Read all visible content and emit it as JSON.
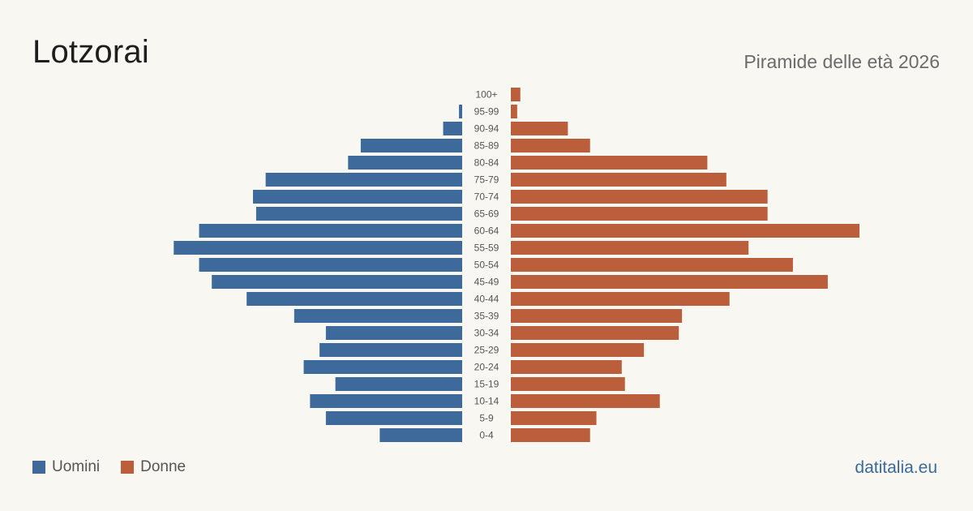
{
  "header": {
    "title": "Lotzorai",
    "subtitle": "Piramide delle età 2026"
  },
  "legend": {
    "men_label": "Uomini",
    "women_label": "Donne"
  },
  "footer": {
    "brand": "datitalia.eu"
  },
  "colors": {
    "men": "#3d6a9b",
    "women": "#bb5e3b",
    "age_label": "#555555"
  },
  "chart_data": {
    "type": "bar",
    "orientation": "horizontal-pyramid",
    "categories": [
      "100+",
      "95-99",
      "90-94",
      "85-89",
      "80-84",
      "75-79",
      "70-74",
      "65-69",
      "60-64",
      "55-59",
      "50-54",
      "45-49",
      "40-44",
      "35-39",
      "30-34",
      "25-29",
      "20-24",
      "15-19",
      "10-14",
      "5-9",
      "0-4"
    ],
    "series": [
      {
        "name": "Uomini",
        "values": [
          0,
          1,
          6,
          32,
          36,
          62,
          66,
          65,
          83,
          91,
          83,
          79,
          68,
          53,
          43,
          45,
          50,
          40,
          48,
          43,
          26
        ]
      },
      {
        "name": "Donne",
        "values": [
          3,
          2,
          18,
          25,
          62,
          68,
          81,
          81,
          110,
          75,
          89,
          100,
          69,
          54,
          53,
          42,
          35,
          36,
          47,
          27,
          25
        ]
      }
    ],
    "xlim": [
      0,
      110
    ],
    "grid": false,
    "legend_position": "bottom-left"
  }
}
